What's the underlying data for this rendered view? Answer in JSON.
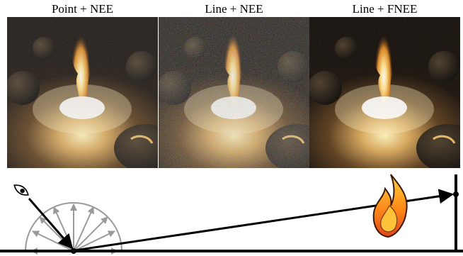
{
  "figure": {
    "panels": [
      {
        "caption": "Point + NEE",
        "noise": "medium"
      },
      {
        "caption": "Line + NEE",
        "noise": "high"
      },
      {
        "caption": "Line + FNEE",
        "noise": "low"
      }
    ],
    "diagram": {
      "icons": [
        "eye-icon",
        "flame-icon"
      ]
    }
  }
}
